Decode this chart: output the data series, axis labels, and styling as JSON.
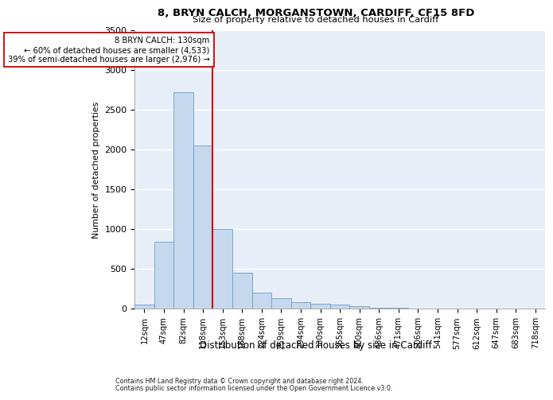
{
  "title1": "8, BRYN CALCH, MORGANSTOWN, CARDIFF, CF15 8FD",
  "title2": "Size of property relative to detached houses in Cardiff",
  "xlabel": "Distribution of detached houses by size in Cardiff",
  "ylabel": "Number of detached properties",
  "footnote1": "Contains HM Land Registry data © Crown copyright and database right 2024.",
  "footnote2": "Contains public sector information licensed under the Open Government Licence v3.0.",
  "annotation_line1": "8 BRYN CALCH: 130sqm",
  "annotation_line2": "← 60% of detached houses are smaller (4,533)",
  "annotation_line3": "39% of semi-detached houses are larger (2,976) →",
  "bar_color": "#c5d8ed",
  "bar_edge_color": "#6a9fc8",
  "subject_line_color": "#cc0000",
  "annotation_box_edge_color": "#cc0000",
  "background_color": "#e8eef8",
  "categories": [
    "12sqm",
    "47sqm",
    "82sqm",
    "118sqm",
    "153sqm",
    "188sqm",
    "224sqm",
    "259sqm",
    "294sqm",
    "330sqm",
    "365sqm",
    "400sqm",
    "436sqm",
    "471sqm",
    "506sqm",
    "541sqm",
    "577sqm",
    "612sqm",
    "647sqm",
    "683sqm",
    "718sqm"
  ],
  "values": [
    55,
    840,
    2720,
    2050,
    1000,
    450,
    200,
    130,
    80,
    60,
    55,
    30,
    15,
    10,
    5,
    3,
    2,
    1,
    1,
    1,
    0
  ],
  "subject_bin_index": 3,
  "ylim": [
    0,
    3500
  ],
  "yticks": [
    0,
    500,
    1000,
    1500,
    2000,
    2500,
    3000,
    3500
  ]
}
